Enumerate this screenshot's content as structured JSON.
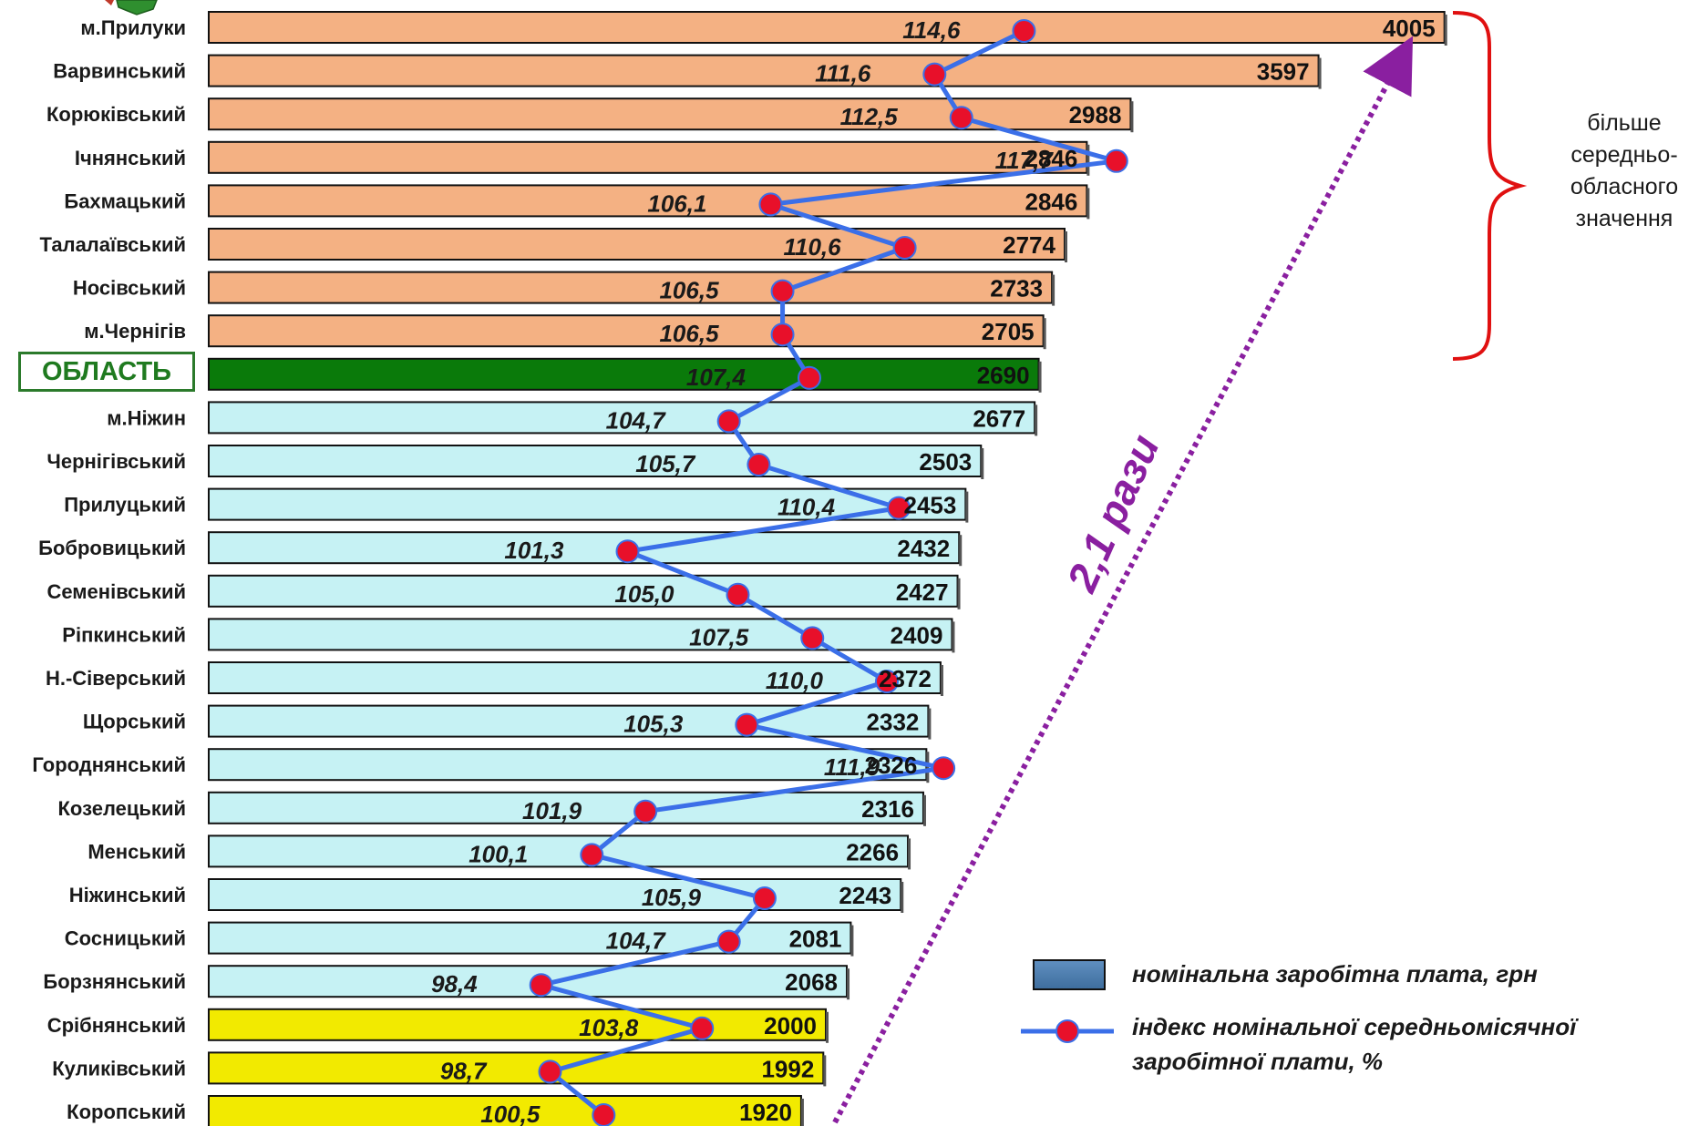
{
  "chart_data": {
    "type": "bar",
    "orientation": "horizontal",
    "categories": [
      "м.Прилуки",
      "Варвинський",
      "Корюківський",
      "Ічнянський",
      "Бахмацький",
      "Талалаївський",
      "Носівський",
      "м.Чернігів",
      "ОБЛАСТЬ",
      "м.Ніжин",
      "Чернігівський",
      "Прилуцький",
      "Бобровицький",
      "Семенівський",
      "Ріпкинський",
      "Н.-Сіверський",
      "Щорський",
      "Городнянський",
      "Козелецький",
      "Менський",
      "Ніжинський",
      "Сосницький",
      "Борзнянський",
      "Срібнянський",
      "Куликівський",
      "Коропський"
    ],
    "series": [
      {
        "name": "номінальна заробітна плата, грн",
        "type": "bar",
        "values": [
          4005,
          3597,
          2988,
          2846,
          2846,
          2774,
          2733,
          2705,
          2690,
          2677,
          2503,
          2453,
          2432,
          2427,
          2409,
          2372,
          2332,
          2326,
          2316,
          2266,
          2243,
          2081,
          2068,
          2000,
          1992,
          1920
        ],
        "labels": [
          "4005",
          "3597",
          "2988",
          "2846",
          "2846",
          "2774",
          "2733",
          "2705",
          "2690",
          "2677",
          "2503",
          "2453",
          "2432",
          "2427",
          "2409",
          "2372",
          "2332",
          "2326",
          "2316",
          "2266",
          "2243",
          "2081",
          "2068",
          "2000",
          "1992",
          "1920"
        ]
      },
      {
        "name": "індекс номінальної середньомісячної заробітної плати, %",
        "type": "line",
        "values": [
          114.6,
          111.6,
          112.5,
          117.7,
          106.1,
          110.6,
          106.5,
          106.5,
          107.4,
          104.7,
          105.7,
          110.4,
          101.3,
          105.0,
          107.5,
          110.0,
          105.3,
          111.9,
          101.9,
          100.1,
          105.9,
          104.7,
          98.4,
          103.8,
          98.7,
          100.5
        ],
        "labels": [
          "114,6",
          "111,6",
          "112,5",
          "117,7",
          "106,1",
          "110,6",
          "106,5",
          "106,5",
          "107,4",
          "104,7",
          "105,7",
          "110,4",
          "101,3",
          "105,0",
          "107,5",
          "110,0",
          "105,3",
          "111,9",
          "101,9",
          "100,1",
          "105,9",
          "104,7",
          "98,4",
          "103,8",
          "98,7",
          "100,5"
        ]
      }
    ],
    "bar_groups": [
      "above",
      "above",
      "above",
      "above",
      "above",
      "above",
      "above",
      "above",
      "oblast",
      "below",
      "below",
      "below",
      "below",
      "below",
      "below",
      "below",
      "below",
      "below",
      "below",
      "below",
      "below",
      "below",
      "below",
      "lowest",
      "lowest",
      "lowest"
    ],
    "colors": {
      "above": "#f4b183",
      "oblast": "#0a7a0a",
      "below": "#c6f2f4",
      "lowest": "#f2ea00",
      "line": "#3b6fe8",
      "marker": "#e8102a",
      "bracket": "#e01010",
      "ratio_arrow": "#8a1fa0",
      "swatch": "#4f7fb0"
    },
    "annotations": {
      "above_average_note": [
        "більше",
        "середньо-",
        "обласного",
        "значення"
      ],
      "ratio": "2,1 рази"
    },
    "legend": {
      "position": "bottom-right",
      "items": [
        {
          "text": "номінальна заробітна плата, грн"
        },
        {
          "text_lines": [
            "індекс номінальної середньомісячної",
            "заробітної плати, %"
          ]
        }
      ]
    }
  }
}
